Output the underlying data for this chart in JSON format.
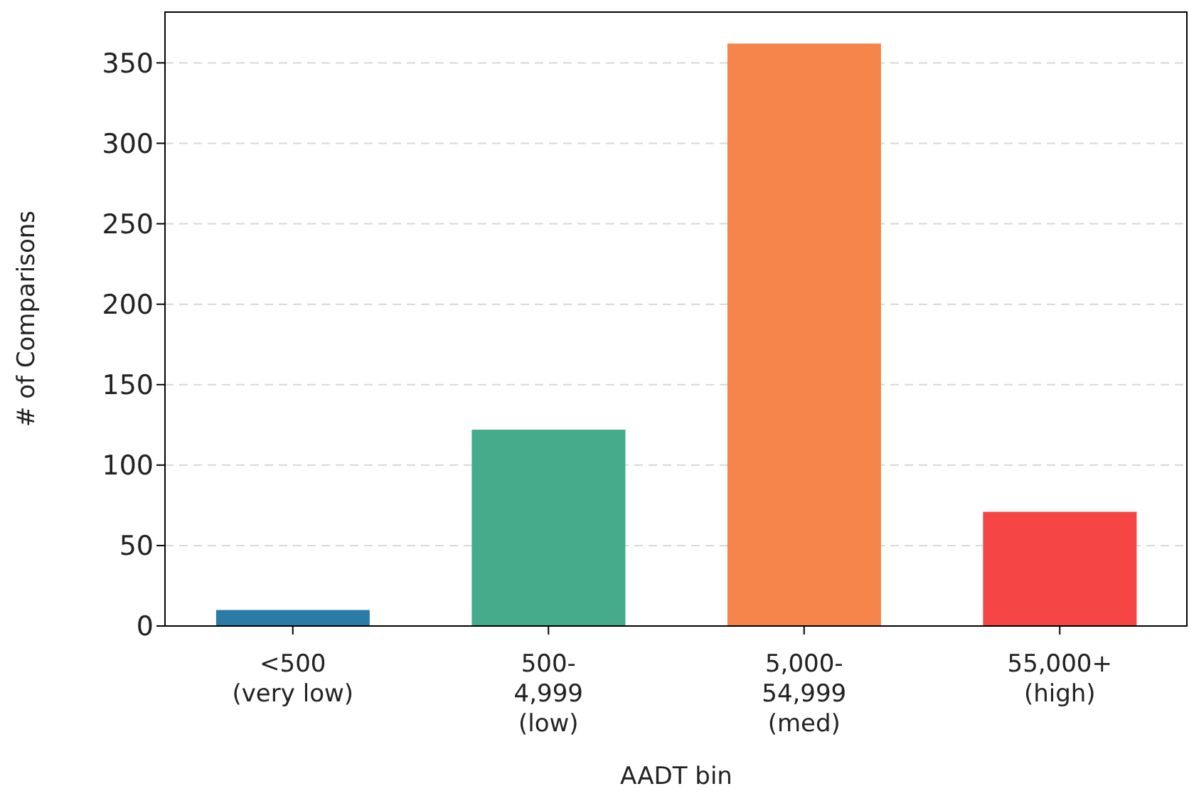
{
  "chart_data": {
    "type": "bar",
    "xlabel": "AADT bin",
    "ylabel": "# of Comparisons",
    "categories": [
      "<500\n(very low)",
      "500-\n4,999\n(low)",
      "5,000-\n54,999\n(med)",
      "55,000+\n(high)"
    ],
    "values": [
      10,
      122,
      362,
      71
    ],
    "colors": [
      "#2a7ca6",
      "#45ab8b",
      "#f5854a",
      "#f54545"
    ],
    "ylim": [
      0,
      382
    ],
    "yticks": [
      0,
      50,
      100,
      150,
      200,
      250,
      300,
      350
    ],
    "grid": "y"
  }
}
